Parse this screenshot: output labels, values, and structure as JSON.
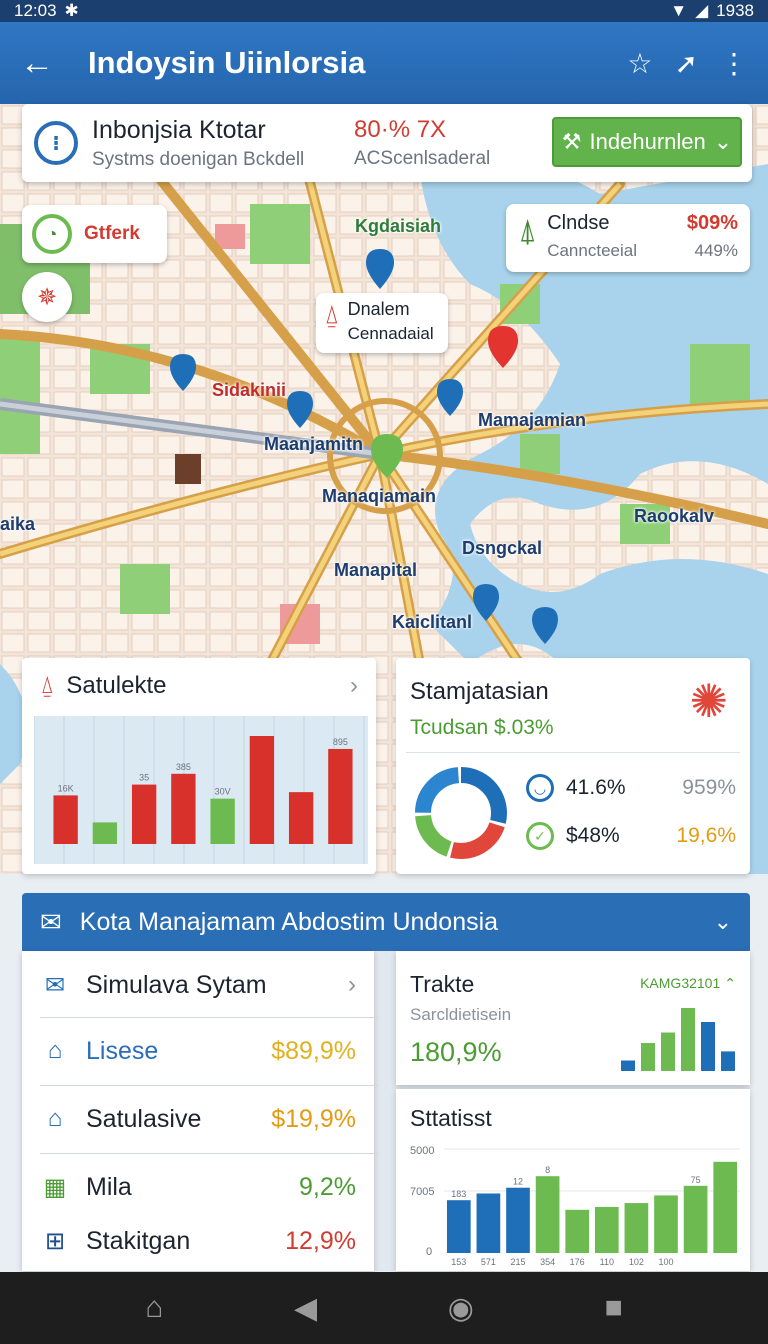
{
  "status_bar": {
    "time": "12:03",
    "right_text": "1938"
  },
  "app_bar": {
    "title": "Indoysin Uiinlorsia"
  },
  "info_card": {
    "title": "Inbonjsia Ktotar",
    "subtitle": "Systms doenigan Bckdell",
    "percent": "80·% 7X",
    "percent_sub": "ACScenlsaderal",
    "button_label": "Indehurnlen"
  },
  "map_chips": {
    "left_chip": "Gtferk",
    "pin_popup": {
      "line1": "Dnalem",
      "line2": "Cennadaial"
    },
    "right_popup": {
      "title": "Clndse",
      "value": "$09%",
      "sub": "Canncteeial",
      "sub_value": "449%"
    }
  },
  "map_labels": {
    "kgdaisiah": "Kgdaisiah",
    "sidakinii": "Sidakinii",
    "mamajamian": "Mamajamian",
    "maanjamitn": "Maanjamitn",
    "manaqiamain": "Manaqiamain",
    "dsngckal": "Dsngckal",
    "manapital": "Manapital",
    "kaiclitanl": "Kaiclitanl",
    "raookalv": "Raookalv",
    "aika": "aika"
  },
  "satulekte_card": {
    "title": "Satulekte",
    "bar_labels": [
      "16K",
      "",
      "35",
      "385",
      "30V",
      "",
      "",
      "895"
    ]
  },
  "stamjatasian_card": {
    "title": "Stamjatasian",
    "subtitle": "Tcudsan $.03%",
    "stat1": "41.6%",
    "stat1_right": "959%",
    "stat2": "$48%",
    "stat2_right": "19,6%"
  },
  "section": {
    "title": "Kota Manajamam Abdostim Undonsia",
    "list": [
      {
        "label": "Simulava Sytam",
        "value": ""
      },
      {
        "label": "Lisese",
        "value": "$89,9%"
      },
      {
        "label": "Satulasive",
        "value": "$19,9%"
      },
      {
        "label": "Mila",
        "value": "9,2%"
      },
      {
        "label": "Stakitgan",
        "value": "12,9%"
      }
    ],
    "trake": {
      "title": "Trakte",
      "subtitle": "Sarcldietisein",
      "value": "180,9%",
      "tag": "KAMG32101"
    },
    "statist": {
      "title": "Sttatisst",
      "y_top": "5000",
      "y_mid": "7005",
      "y_zero": "0"
    }
  },
  "chart_data": [
    {
      "type": "bar",
      "title": "Satulekte",
      "categories": [
        "1",
        "2",
        "3",
        "4",
        "5",
        "6",
        "7",
        "8"
      ],
      "values": [
        45,
        20,
        55,
        65,
        42,
        100,
        48,
        88
      ],
      "colors": [
        "#d8302b",
        "#6dbb50",
        "#d8302b",
        "#d8302b",
        "#6dbb50",
        "#d8302b",
        "#d8302b",
        "#d8302b"
      ]
    },
    {
      "type": "pie",
      "title": "Stamjatasian",
      "values": [
        30,
        25,
        20,
        25
      ],
      "colors": [
        "#1f6fb8",
        "#e0463a",
        "#6dbb50",
        "#2c86cf"
      ]
    },
    {
      "type": "bar",
      "title": "Trakte",
      "categories": [
        "1",
        "2",
        "3",
        "4",
        "5",
        "6"
      ],
      "values": [
        15,
        40,
        55,
        90,
        70,
        28
      ],
      "colors": [
        "#1f6fb8",
        "#6dbb50",
        "#6dbb50",
        "#6dbb50",
        "#1f6fb8",
        "#1f6fb8"
      ]
    },
    {
      "type": "bar",
      "title": "Sttatisst",
      "categories": [
        "1",
        "2",
        "3",
        "4",
        "5",
        "6",
        "7",
        "8",
        "9",
        "10"
      ],
      "values": [
        55,
        62,
        68,
        80,
        45,
        48,
        52,
        60,
        70,
        95
      ],
      "value_labels": [
        "183",
        "",
        "12",
        "8",
        "",
        "",
        "",
        "",
        "75",
        ""
      ],
      "tick_labels": [
        "153",
        "571",
        "215",
        "354",
        "176",
        "110",
        "102",
        "100",
        "",
        ""
      ],
      "colors": [
        "#1f6fb8",
        "#1f6fb8",
        "#1f6fb8",
        "#6dbb50",
        "#6dbb50",
        "#6dbb50",
        "#6dbb50",
        "#6dbb50",
        "#6dbb50",
        "#6dbb50"
      ]
    }
  ]
}
